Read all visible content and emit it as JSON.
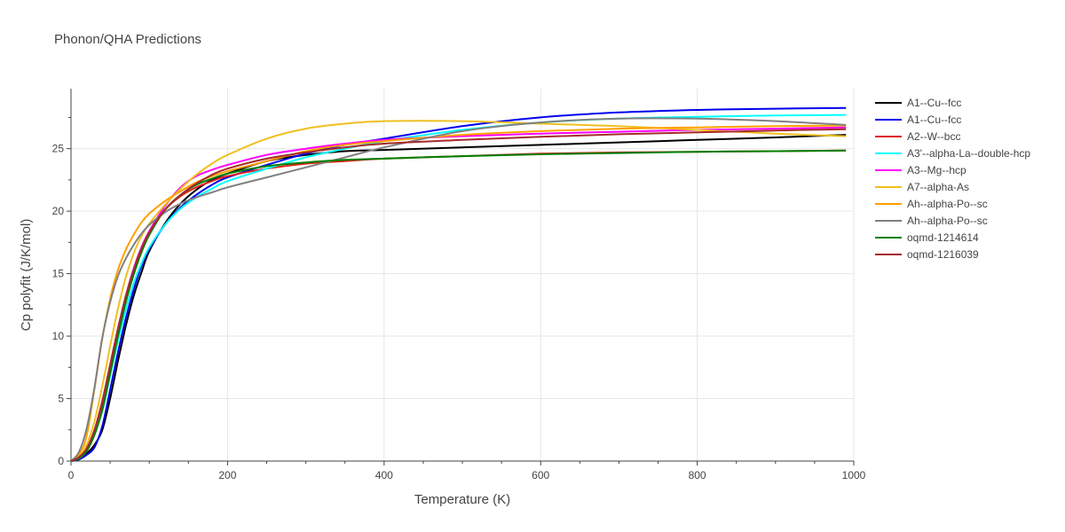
{
  "chart_data": {
    "type": "line",
    "title": "Phonon/QHA Predictions",
    "xlabel": "Temperature (K)",
    "ylabel": "Cp polyfit (J/K/mol)",
    "xlim": [
      0,
      1000
    ],
    "ylim": [
      0,
      29.8
    ],
    "xticks": [
      "0",
      "200",
      "400",
      "600",
      "800",
      "1000"
    ],
    "yticks": [
      "0",
      "5",
      "10",
      "15",
      "20",
      "25"
    ],
    "grid": true,
    "legend_position": "right",
    "x": [
      0,
      10,
      20,
      30,
      40,
      50,
      60,
      70,
      80,
      90,
      100,
      120,
      140,
      160,
      180,
      200,
      250,
      300,
      350,
      400,
      500,
      600,
      700,
      800,
      900,
      990
    ],
    "series": [
      {
        "name": "A1--Cu--fcc",
        "color": "#000000",
        "values": [
          0,
          0.15,
          0.6,
          1.3,
          2.5,
          5.0,
          8.0,
          10.8,
          13.2,
          15.1,
          16.8,
          19.0,
          20.6,
          21.7,
          22.5,
          23.0,
          24.0,
          24.5,
          24.8,
          24.9,
          25.1,
          25.3,
          25.5,
          25.7,
          25.9,
          26.1
        ]
      },
      {
        "name": "A1--Cu--fcc",
        "color": "#0000ee",
        "values": [
          0,
          0.12,
          0.5,
          1.1,
          2.8,
          5.7,
          8.7,
          11.4,
          13.7,
          15.6,
          17.0,
          18.9,
          20.3,
          21.3,
          22.1,
          22.7,
          23.7,
          24.6,
          25.3,
          25.8,
          26.8,
          27.5,
          27.9,
          28.1,
          28.2,
          28.25
        ]
      },
      {
        "name": "A2--W--bcc",
        "color": "#e0201b",
        "values": [
          0,
          0.2,
          0.9,
          2.3,
          4.4,
          7.4,
          10.3,
          12.9,
          15.1,
          16.9,
          18.3,
          20.1,
          21.2,
          21.9,
          22.4,
          22.8,
          23.4,
          23.8,
          24.0,
          24.2,
          24.4,
          24.6,
          24.7,
          24.75,
          24.8,
          24.85
        ]
      },
      {
        "name": "A3'--alpha-La--double-hcp",
        "color": "#00ffff",
        "values": [
          0,
          0.2,
          0.8,
          2.2,
          4.0,
          6.8,
          9.6,
          12.1,
          14.2,
          15.8,
          17.1,
          18.9,
          20.2,
          21.1,
          21.8,
          22.4,
          23.4,
          24.3,
          25.0,
          25.6,
          26.5,
          27.1,
          27.4,
          27.55,
          27.65,
          27.7
        ]
      },
      {
        "name": "A3--Mg--hcp",
        "color": "#ff00ff",
        "values": [
          0,
          0.25,
          1.0,
          2.5,
          4.8,
          7.7,
          10.6,
          13.2,
          15.4,
          17.1,
          18.4,
          20.4,
          21.9,
          22.8,
          23.3,
          23.7,
          24.5,
          25.0,
          25.4,
          25.7,
          26.0,
          26.2,
          26.35,
          26.5,
          26.6,
          26.7
        ]
      },
      {
        "name": "A7--alpha-As",
        "color": "#f0c020",
        "values": [
          0,
          0.3,
          1.3,
          3.2,
          6.0,
          9.2,
          12.2,
          14.7,
          16.6,
          18.0,
          19.0,
          20.5,
          21.8,
          22.9,
          23.8,
          24.5,
          25.8,
          26.6,
          27.0,
          27.2,
          27.2,
          27.0,
          26.8,
          26.5,
          26.2,
          26.0
        ]
      },
      {
        "name": "Ah--alpha-Po--sc",
        "color": "#ffa000",
        "values": [
          0,
          0.5,
          2.0,
          5.8,
          9.8,
          13.0,
          15.3,
          16.9,
          18.1,
          19.1,
          19.8,
          20.8,
          21.6,
          22.3,
          22.8,
          23.2,
          24.0,
          24.8,
          25.3,
          25.6,
          26.1,
          26.4,
          26.6,
          26.7,
          26.8,
          26.85
        ]
      },
      {
        "name": "Ah--alpha-Po--sc",
        "color": "#808080",
        "values": [
          0,
          0.7,
          2.6,
          5.9,
          9.9,
          12.7,
          14.8,
          16.2,
          17.3,
          18.2,
          18.9,
          19.9,
          20.6,
          21.1,
          21.5,
          21.9,
          22.7,
          23.5,
          24.3,
          25.1,
          26.4,
          27.1,
          27.4,
          27.4,
          27.2,
          26.9
        ]
      },
      {
        "name": "oqmd-1214614",
        "color": "#008000",
        "values": [
          0,
          0.2,
          0.8,
          2.1,
          4.1,
          7.0,
          10.0,
          12.7,
          14.9,
          16.7,
          18.1,
          20.1,
          21.3,
          22.1,
          22.6,
          23.0,
          23.6,
          23.9,
          24.1,
          24.2,
          24.4,
          24.55,
          24.65,
          24.75,
          24.8,
          24.85
        ]
      },
      {
        "name": "oqmd-1216039",
        "color": "#a52a2a",
        "values": [
          0,
          0.3,
          1.0,
          2.5,
          4.8,
          7.7,
          10.6,
          13.2,
          15.3,
          17.0,
          18.3,
          20.1,
          21.3,
          22.2,
          22.9,
          23.4,
          24.2,
          24.7,
          25.1,
          25.4,
          25.7,
          25.95,
          26.15,
          26.3,
          26.45,
          26.55
        ]
      }
    ]
  }
}
